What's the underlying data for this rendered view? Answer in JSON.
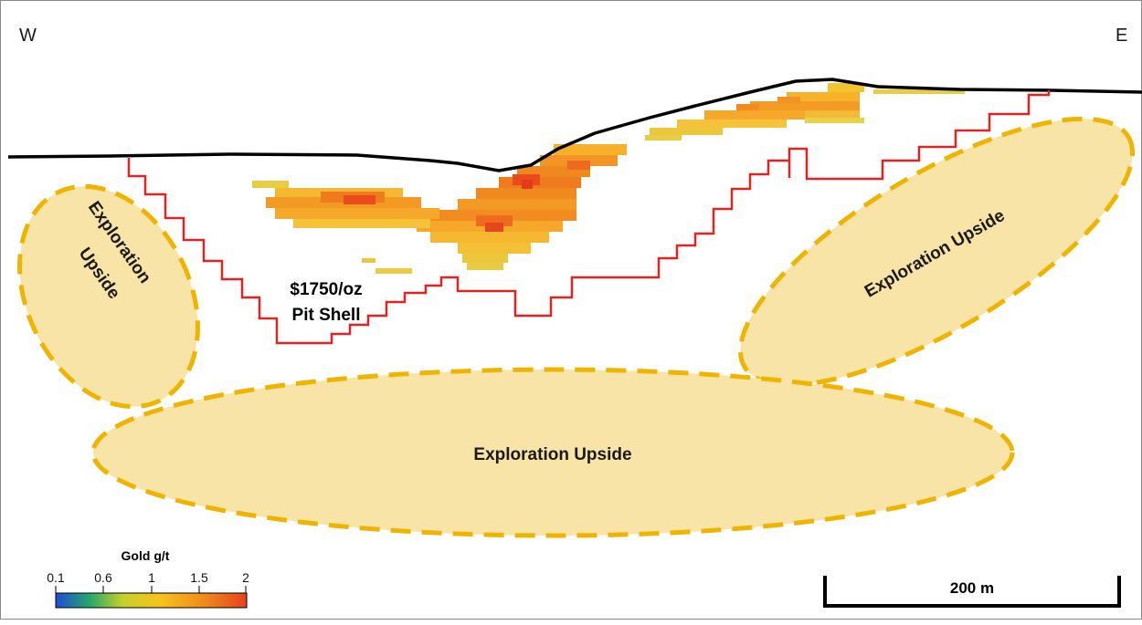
{
  "directions": {
    "west": "W",
    "east": "E"
  },
  "pit_shell": {
    "line1": "$1750/oz",
    "line2": "Pit Shell",
    "color": "#e32222"
  },
  "exploration_zones": {
    "left_line1": "Exploration",
    "left_line2": "Upside",
    "right": "Exploration Upside",
    "bottom": "Exploration Upside",
    "fill": "#f9e4a8",
    "stroke": "#f0b400"
  },
  "topography": {
    "color": "#000000"
  },
  "legend": {
    "title": "Gold g/t",
    "ticks": [
      "0.1",
      "0.6",
      "1",
      "1.5",
      "2"
    ],
    "gradient": [
      "#1f4bd6",
      "#27a86a",
      "#c8d02a",
      "#f7c21c",
      "#f08a1c",
      "#e8401c"
    ]
  },
  "scale_bar": {
    "label": "200 m"
  }
}
